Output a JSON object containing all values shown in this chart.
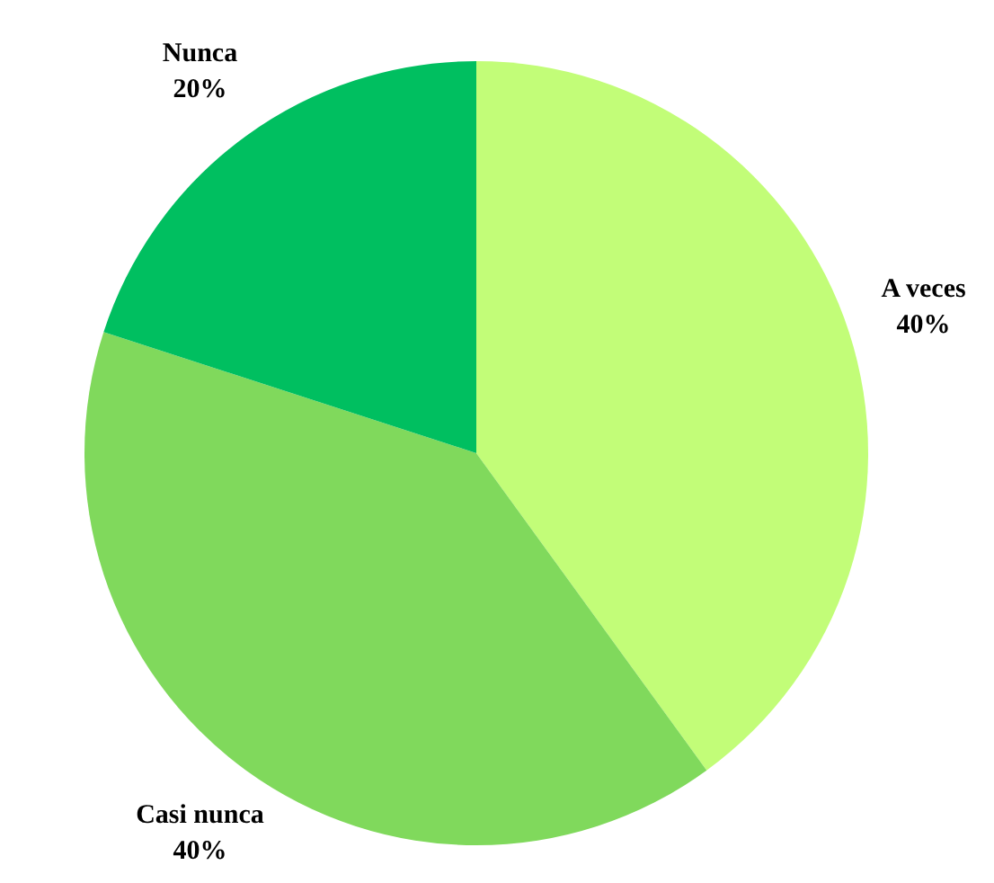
{
  "chart_data": {
    "type": "pie",
    "categories": [
      "A veces",
      "Casi nunca",
      "Nunca"
    ],
    "values": [
      40,
      40,
      20
    ],
    "colors": [
      "#c2fd78",
      "#80d95c",
      "#00bf60"
    ],
    "value_labels": [
      "40%",
      "40%",
      "20%"
    ],
    "legend": false
  }
}
